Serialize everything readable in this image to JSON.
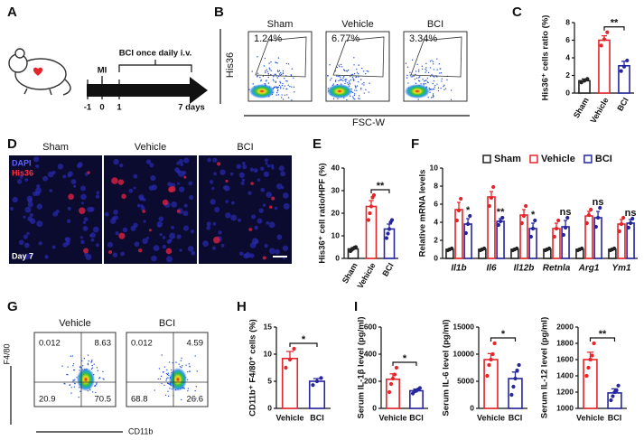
{
  "panel_labels": [
    "A",
    "B",
    "C",
    "D",
    "E",
    "F",
    "G",
    "H",
    "I"
  ],
  "timeline": {
    "treatment": "BCI once daily i.v.",
    "event": "MI",
    "ticks": [
      "-1",
      "0",
      "1",
      "7 days"
    ]
  },
  "flow_B": {
    "y_label": "His36",
    "x_label": "FSC-W",
    "plots": [
      {
        "title": "Sham",
        "gate": "1.24%"
      },
      {
        "title": "Vehicle",
        "gate": "6.77%"
      },
      {
        "title": "BCI",
        "gate": "3.34%"
      }
    ]
  },
  "micrographs": {
    "titles": [
      "Sham",
      "Vehicle",
      "BCI"
    ],
    "stains": [
      "DAPI",
      "His36"
    ],
    "timepoint": "Day 7"
  },
  "flow_G": {
    "y_label": "F4/80",
    "x_label": "CD11b",
    "plots": [
      {
        "title": "Vehicle",
        "quadrants": [
          "0.012",
          "8.63",
          "20.9",
          "70.5"
        ]
      },
      {
        "title": "BCI",
        "quadrants": [
          "0.012",
          "4.59",
          "68.8",
          "26.6"
        ]
      }
    ]
  },
  "chart_data": [
    {
      "type": "bar",
      "ylabel": "His36⁺ cells ratio (%)",
      "categories": [
        "Sham",
        "Vehicle",
        "BCI"
      ],
      "values": [
        1.4,
        6.0,
        3.1
      ],
      "errors": [
        0.2,
        0.5,
        0.5
      ],
      "points": [
        [
          1.2,
          1.4,
          1.6
        ],
        [
          5.4,
          6.1,
          6.9
        ],
        [
          2.5,
          3.0,
          3.7
        ]
      ],
      "colors": [
        "#222222",
        "#e3262b",
        "#26269e"
      ],
      "ylim": [
        0,
        8
      ],
      "yticks": [
        0,
        2,
        4,
        6,
        8
      ],
      "significance": [
        {
          "label": "**",
          "from": "Vehicle",
          "to": "BCI"
        }
      ]
    },
    {
      "type": "bar",
      "ylabel": "His36⁺ cell ratio/HPF (%)",
      "categories": [
        "Sham",
        "Vehicle",
        "BCI"
      ],
      "values": [
        4.2,
        23,
        13
      ],
      "errors": [
        0.6,
        2.6,
        2.2
      ],
      "points": [
        [
          3.2,
          3.8,
          4.3,
          4.8,
          5.0
        ],
        [
          17,
          20,
          23,
          27,
          28
        ],
        [
          9,
          11,
          13,
          16,
          17
        ]
      ],
      "colors": [
        "#222222",
        "#e3262b",
        "#26269e"
      ],
      "ylim": [
        0,
        40
      ],
      "yticks": [
        0,
        10,
        20,
        30,
        40
      ],
      "significance": [
        {
          "label": "**",
          "from": "Vehicle",
          "to": "BCI"
        }
      ]
    },
    {
      "type": "grouped_bar",
      "ylabel": "Relative mRNA levels",
      "categories": [
        "Il1b",
        "Il6",
        "Il12b",
        "Retnla",
        "Arg1",
        "Ym1"
      ],
      "series": [
        {
          "name": "Sham",
          "color": "#222222",
          "values": [
            1,
            1,
            1,
            1,
            1,
            1
          ],
          "errors": [
            0.1,
            0.1,
            0.1,
            0.1,
            0.1,
            0.1
          ],
          "points": [
            [
              0.9,
              1.0,
              1.1
            ],
            [
              0.9,
              1.0,
              1.1
            ],
            [
              0.9,
              1.0,
              1.1
            ],
            [
              0.9,
              1.0,
              1.1
            ],
            [
              0.9,
              1.0,
              1.1
            ],
            [
              0.9,
              1.0,
              1.1
            ]
          ]
        },
        {
          "name": "Vehicle",
          "color": "#e3262b",
          "values": [
            5.4,
            6.8,
            4.8,
            3.3,
            4.7,
            3.8
          ],
          "errors": [
            0.8,
            0.6,
            0.6,
            0.6,
            0.5,
            0.5
          ],
          "points": [
            [
              4.2,
              5.3,
              6.6
            ],
            [
              5.8,
              6.7,
              7.9
            ],
            [
              3.9,
              4.7,
              5.8
            ],
            [
              2.4,
              3.3,
              4.2
            ],
            [
              3.9,
              4.8,
              5.4
            ],
            [
              3.0,
              3.8,
              4.5
            ]
          ]
        },
        {
          "name": "BCI",
          "color": "#26269e",
          "values": [
            3.8,
            4.1,
            3.3,
            3.5,
            4.5,
            3.9
          ],
          "errors": [
            0.6,
            0.3,
            0.6,
            0.7,
            0.7,
            0.4
          ],
          "points": [
            [
              2.8,
              3.8,
              4.7
            ],
            [
              3.7,
              4.1,
              4.5
            ],
            [
              2.4,
              3.3,
              4.2
            ],
            [
              2.6,
              3.4,
              4.5
            ],
            [
              3.5,
              4.5,
              5.6
            ],
            [
              3.4,
              3.9,
              4.4
            ]
          ]
        }
      ],
      "marks_above_bci": [
        "*",
        "**",
        "*",
        "ns",
        "ns",
        "ns"
      ],
      "ylim": [
        0,
        10
      ],
      "yticks": [
        0,
        2,
        4,
        6,
        8,
        10
      ],
      "legend": "top"
    },
    {
      "type": "bar",
      "ylabel": "CD11b⁺ F4/80⁺ cells (%)",
      "categories": [
        "Vehicle",
        "BCI"
      ],
      "values": [
        9.2,
        5.0
      ],
      "errors": [
        1.3,
        0.5
      ],
      "points": [
        [
          7.5,
          9.0,
          11.0
        ],
        [
          4.3,
          5.0,
          5.6
        ]
      ],
      "colors": [
        "#e3262b",
        "#26269e"
      ],
      "ylim": [
        0,
        15
      ],
      "yticks": [
        0,
        5,
        10,
        15
      ],
      "significance": [
        {
          "label": "*",
          "from": "Vehicle",
          "to": "BCI"
        }
      ]
    },
    {
      "type": "bar",
      "ylabel": "Serum IL-1β level (pg/ml)",
      "categories": [
        "Vehicle",
        "BCI"
      ],
      "values": [
        215,
        130
      ],
      "errors": [
        40,
        12
      ],
      "points": [
        [
          120,
          180,
          220,
          250,
          300
        ],
        [
          110,
          125,
          130,
          140,
          150
        ]
      ],
      "colors": [
        "#e3262b",
        "#26269e"
      ],
      "ylim": [
        0,
        600
      ],
      "yticks": [
        0,
        200,
        400,
        600
      ],
      "significance": [
        {
          "label": "*",
          "from": "Vehicle",
          "to": "BCI"
        }
      ]
    },
    {
      "type": "bar",
      "ylabel": "Serum IL-6 level (pg/ml)",
      "categories": [
        "Vehicle",
        "BCI"
      ],
      "values": [
        9000,
        5500
      ],
      "errors": [
        1100,
        1200
      ],
      "points": [
        [
          6000,
          8000,
          9000,
          10000,
          12000
        ],
        [
          2500,
          4000,
          5500,
          7000,
          8000
        ]
      ],
      "colors": [
        "#e3262b",
        "#26269e"
      ],
      "ylim": [
        0,
        15000
      ],
      "yticks": [
        0,
        5000,
        10000,
        15000
      ],
      "significance": [
        {
          "label": "*",
          "from": "Vehicle",
          "to": "BCI"
        }
      ]
    },
    {
      "type": "bar",
      "ylabel": "Serum IL-12 level (pg/ml)",
      "categories": [
        "Vehicle",
        "BCI"
      ],
      "values": [
        1600,
        1190
      ],
      "errors": [
        90,
        50
      ],
      "points": [
        [
          1400,
          1500,
          1600,
          1650,
          1800
        ],
        [
          1100,
          1150,
          1200,
          1220,
          1280
        ]
      ],
      "colors": [
        "#e3262b",
        "#26269e"
      ],
      "ylim": [
        1000,
        2000
      ],
      "yticks": [
        1000,
        1200,
        1400,
        1600,
        1800,
        2000
      ],
      "significance": [
        {
          "label": "**",
          "from": "Vehicle",
          "to": "BCI"
        }
      ]
    }
  ]
}
